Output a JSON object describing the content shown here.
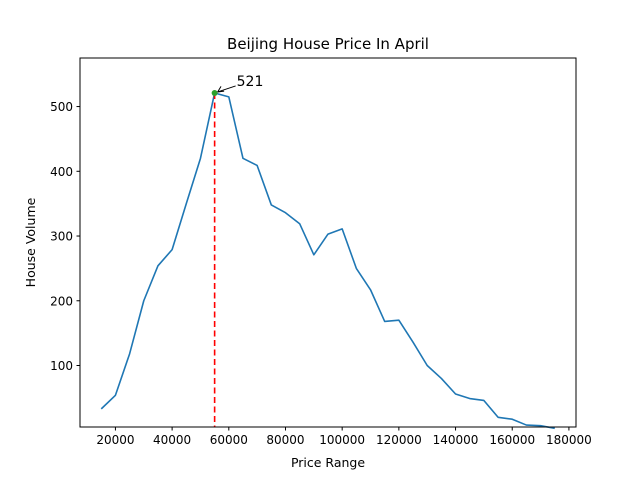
{
  "chart_data": {
    "type": "line",
    "title": "Beijing House Price In April",
    "xlabel": "Price Range",
    "ylabel": "House Volume",
    "xlim": [
      7500,
      182500
    ],
    "ylim": [
      5,
      575
    ],
    "xticks": [
      20000,
      40000,
      60000,
      80000,
      100000,
      120000,
      140000,
      160000,
      180000
    ],
    "xtick_labels": [
      "20000",
      "40000",
      "60000",
      "80000",
      "100000",
      "120000",
      "140000",
      "160000",
      "180000"
    ],
    "yticks": [
      100,
      200,
      300,
      400,
      500
    ],
    "ytick_labels": [
      "100",
      "200",
      "300",
      "400",
      "500"
    ],
    "grid": false,
    "series": [
      {
        "color": "#1f77b4",
        "x": [
          15000,
          20000,
          25000,
          30000,
          35000,
          40000,
          45000,
          50000,
          55000,
          60000,
          65000,
          70000,
          75000,
          80000,
          85000,
          90000,
          95000,
          100000,
          105000,
          110000,
          115000,
          120000,
          125000,
          130000,
          135000,
          140000,
          145000,
          150000,
          155000,
          160000,
          165000,
          170000,
          175000
        ],
        "y": [
          33,
          54,
          118,
          200,
          254,
          279,
          350,
          420,
          521,
          515,
          420,
          409,
          348,
          336,
          319,
          271,
          303,
          311,
          250,
          217,
          168,
          170,
          136,
          100,
          80,
          56,
          49,
          46,
          20,
          17,
          8,
          7,
          3
        ]
      }
    ],
    "peak": {
      "x": 55000,
      "y": 521,
      "label": "521",
      "marker_color": "#2ca02c",
      "line_color": "#ff0000"
    }
  }
}
